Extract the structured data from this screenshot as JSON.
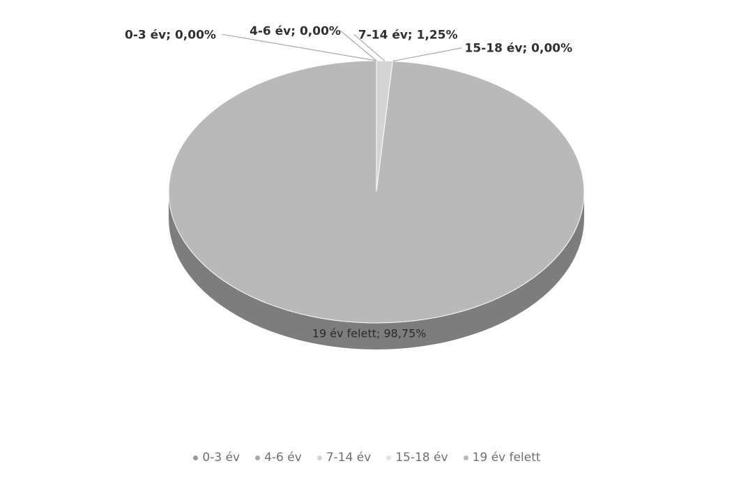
{
  "chart_data": {
    "type": "pie",
    "style": "3d",
    "title": "",
    "categories": [
      "0-3 év",
      "4-6 év",
      "7-14 év",
      "15-18 év",
      "19 év felett"
    ],
    "values": [
      0.0,
      0.0,
      1.25,
      0.0,
      98.75
    ],
    "data_labels": [
      "0-3 év; 0,00%",
      "4-6 év; 0,00%",
      "7-14 év; 1,25%",
      "15-18 év; 0,00%",
      "19 év felett; 98,75%"
    ],
    "colors": [
      "#9a9a9a",
      "#a8a8a8",
      "#d4d4d4",
      "#e2e2e2",
      "#b9b9b9"
    ],
    "legend_position": "bottom"
  }
}
